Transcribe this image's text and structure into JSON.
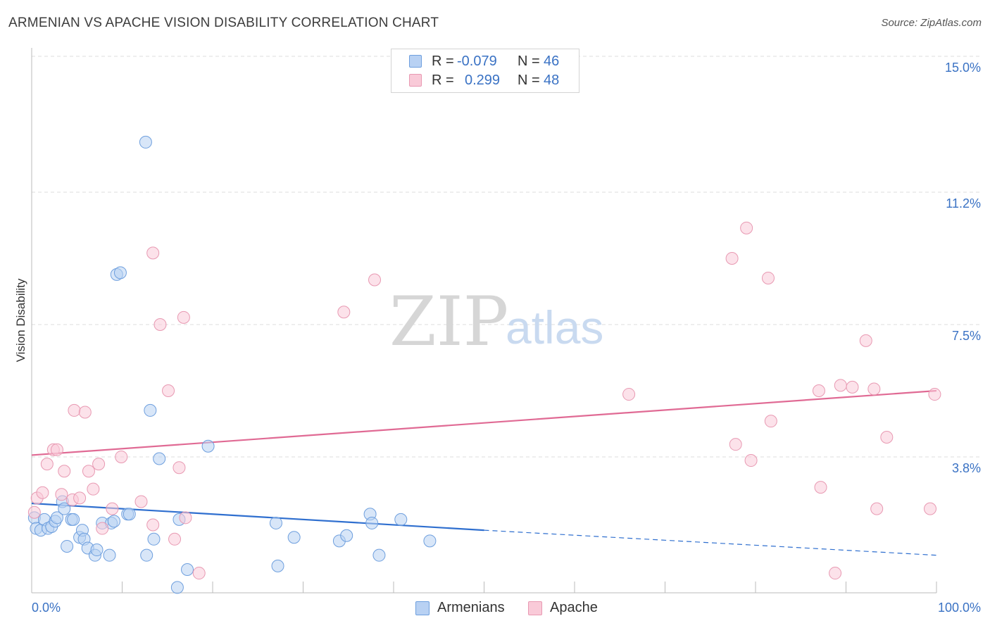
{
  "title": "ARMENIAN VS APACHE VISION DISABILITY CORRELATION CHART",
  "source": "Source: ZipAtlas.com",
  "watermark": {
    "zip": "ZIP",
    "atlas": "atlas"
  },
  "colors": {
    "blue_fill": "#b8d1f3",
    "blue_stroke": "#6e9fde",
    "blue_line": "#2f6fcf",
    "pink_fill": "#f9cad8",
    "pink_stroke": "#e899b2",
    "pink_line": "#e06a94",
    "axis_text": "#3a72c4",
    "grid": "#dddddd"
  },
  "legend": {
    "armenians": {
      "r_label": "R =",
      "r_value": "-0.079",
      "n_label": "N =",
      "n_value": "46"
    },
    "apache": {
      "r_label": "R =",
      "r_value": "0.299",
      "n_label": "N =",
      "n_value": "48"
    }
  },
  "bottom_legend": {
    "armenians": "Armenians",
    "apache": "Apache"
  },
  "chart_data": {
    "type": "scatter",
    "title": "ARMENIAN VS APACHE VISION DISABILITY CORRELATION CHART",
    "xlabel": "",
    "ylabel": "Vision Disability",
    "xlim": [
      0,
      100
    ],
    "ylim": [
      0,
      15
    ],
    "x_tick_labels": [
      "0.0%",
      "100.0%"
    ],
    "y_ticks": [
      3.8,
      7.5,
      11.2,
      15.0
    ],
    "y_tick_labels": [
      "3.8%",
      "7.5%",
      "11.2%",
      "15.0%"
    ],
    "grid": true,
    "series": [
      {
        "name": "Armenians",
        "color": "blue",
        "trend": {
          "x0": 0,
          "y0": 2.5,
          "x1": 50,
          "y1": 1.75,
          "dash_x1": 100,
          "dash_y1": 1.05
        },
        "points": [
          [
            0.3,
            2.1
          ],
          [
            0.5,
            1.8
          ],
          [
            1,
            1.75
          ],
          [
            1.4,
            2.05
          ],
          [
            1.8,
            1.8
          ],
          [
            2.2,
            1.85
          ],
          [
            2.6,
            2.0
          ],
          [
            2.8,
            2.1
          ],
          [
            3.4,
            2.55
          ],
          [
            3.6,
            2.35
          ],
          [
            3.9,
            1.3
          ],
          [
            4.4,
            2.05
          ],
          [
            4.6,
            2.05
          ],
          [
            5.3,
            1.55
          ],
          [
            5.6,
            1.75
          ],
          [
            5.8,
            1.5
          ],
          [
            6.2,
            1.25
          ],
          [
            7,
            1.05
          ],
          [
            7.2,
            1.2
          ],
          [
            7.8,
            1.95
          ],
          [
            8.6,
            1.05
          ],
          [
            8.8,
            1.95
          ],
          [
            9.1,
            2.0
          ],
          [
            9.4,
            8.9
          ],
          [
            9.8,
            8.95
          ],
          [
            10.6,
            2.2
          ],
          [
            10.8,
            2.2
          ],
          [
            12.6,
            12.6
          ],
          [
            12.7,
            1.05
          ],
          [
            13.1,
            5.1
          ],
          [
            13.5,
            1.5
          ],
          [
            14.1,
            3.75
          ],
          [
            16.3,
            2.05
          ],
          [
            17.2,
            0.65
          ],
          [
            16.1,
            0.15
          ],
          [
            19.5,
            4.1
          ],
          [
            27,
            1.95
          ],
          [
            27.2,
            0.75
          ],
          [
            29,
            1.55
          ],
          [
            34,
            1.45
          ],
          [
            34.8,
            1.6
          ],
          [
            37.4,
            2.2
          ],
          [
            37.6,
            1.95
          ],
          [
            38.4,
            1.05
          ],
          [
            40.8,
            2.05
          ],
          [
            44,
            1.45
          ]
        ]
      },
      {
        "name": "Apache",
        "color": "pink",
        "trend": {
          "x0": 0,
          "y0": 3.85,
          "x1": 100,
          "y1": 5.65
        },
        "points": [
          [
            0.3,
            2.25
          ],
          [
            0.6,
            2.65
          ],
          [
            1.2,
            2.8
          ],
          [
            1.7,
            3.6
          ],
          [
            2.4,
            4.0
          ],
          [
            2.8,
            4.0
          ],
          [
            3.3,
            2.75
          ],
          [
            3.6,
            3.4
          ],
          [
            4.5,
            2.6
          ],
          [
            4.7,
            5.1
          ],
          [
            5.3,
            2.65
          ],
          [
            5.9,
            5.05
          ],
          [
            6.3,
            3.4
          ],
          [
            6.8,
            2.9
          ],
          [
            7.4,
            3.6
          ],
          [
            7.8,
            1.8
          ],
          [
            8.9,
            2.35
          ],
          [
            9.9,
            3.8
          ],
          [
            12.1,
            2.55
          ],
          [
            13.4,
            1.9
          ],
          [
            13.4,
            9.5
          ],
          [
            14.2,
            7.5
          ],
          [
            15.1,
            5.65
          ],
          [
            15.8,
            1.5
          ],
          [
            16.3,
            3.5
          ],
          [
            16.8,
            7.7
          ],
          [
            17,
            2.1
          ],
          [
            18.5,
            0.55
          ],
          [
            34.5,
            7.85
          ],
          [
            37.9,
            8.75
          ],
          [
            66,
            5.55
          ],
          [
            77.4,
            9.35
          ],
          [
            77.8,
            4.15
          ],
          [
            79,
            10.2
          ],
          [
            79.5,
            3.7
          ],
          [
            81.4,
            8.8
          ],
          [
            81.7,
            4.8
          ],
          [
            87,
            5.65
          ],
          [
            87.2,
            2.95
          ],
          [
            88.8,
            0.55
          ],
          [
            89.4,
            5.8
          ],
          [
            90.7,
            5.75
          ],
          [
            92.2,
            7.05
          ],
          [
            93.1,
            5.7
          ],
          [
            93.4,
            2.35
          ],
          [
            94.5,
            4.35
          ],
          [
            99.3,
            2.35
          ],
          [
            99.8,
            5.55
          ]
        ]
      }
    ]
  }
}
